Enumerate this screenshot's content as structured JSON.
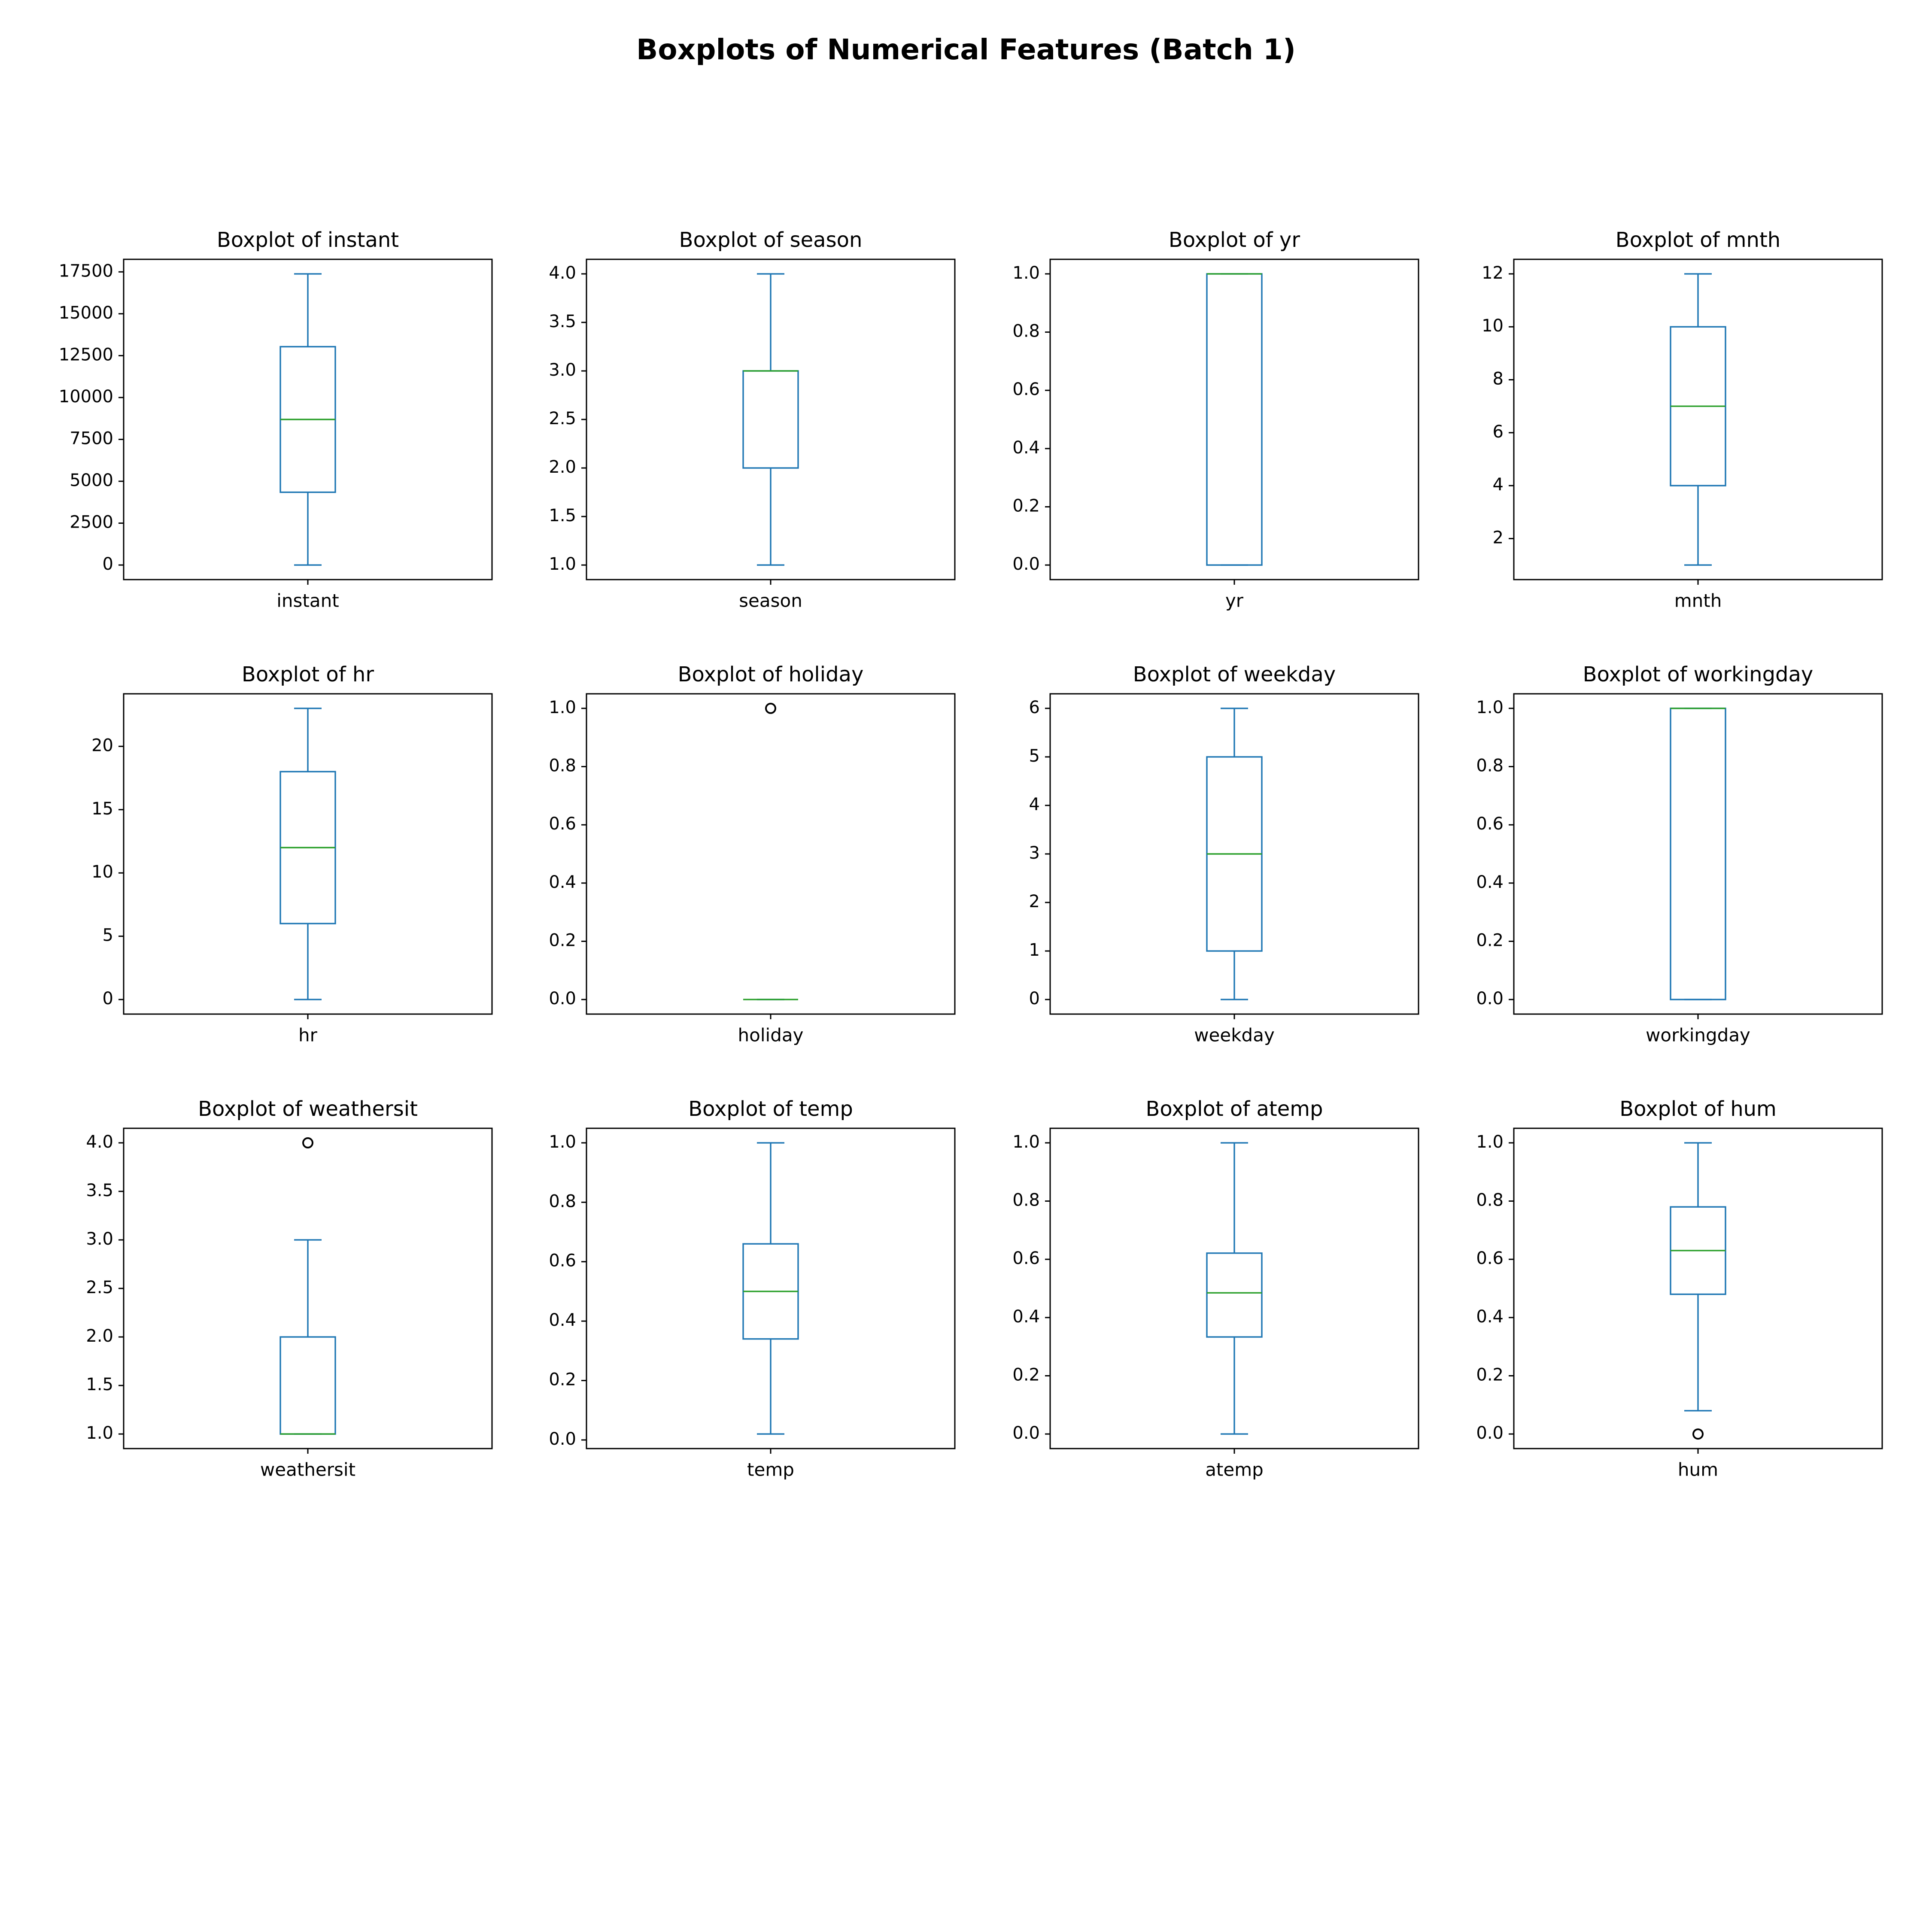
{
  "suptitle": "Boxplots of Numerical Features (Batch 1)",
  "colors": {
    "box": "#1f77b4",
    "median": "#2ca02c",
    "frame": "#000000",
    "flier": "#000000",
    "text": "#000000",
    "background": "#ffffff"
  },
  "chart_data": [
    {
      "type": "box",
      "title": "Boxplot of instant",
      "xlabel": "instant",
      "ylim": [
        -870,
        18250
      ],
      "yticks": [
        0,
        2500,
        5000,
        7500,
        10000,
        12500,
        15000,
        17500
      ],
      "ytick_labels": [
        "0",
        "2500",
        "5000",
        "7500",
        "10000",
        "12500",
        "15000",
        "17500"
      ],
      "whisker_low": 1,
      "q1": 4345,
      "median": 8690,
      "q3": 13034,
      "whisker_high": 17379,
      "fliers": []
    },
    {
      "type": "box",
      "title": "Boxplot of season",
      "xlabel": "season",
      "ylim": [
        0.85,
        4.15
      ],
      "yticks": [
        1.0,
        1.5,
        2.0,
        2.5,
        3.0,
        3.5,
        4.0
      ],
      "ytick_labels": [
        "1.0",
        "1.5",
        "2.0",
        "2.5",
        "3.0",
        "3.5",
        "4.0"
      ],
      "whisker_low": 1,
      "q1": 2,
      "median": 3,
      "q3": 3,
      "whisker_high": 4,
      "fliers": []
    },
    {
      "type": "box",
      "title": "Boxplot of yr",
      "xlabel": "yr",
      "ylim": [
        -0.05,
        1.05
      ],
      "yticks": [
        0.0,
        0.2,
        0.4,
        0.6,
        0.8,
        1.0
      ],
      "ytick_labels": [
        "0.0",
        "0.2",
        "0.4",
        "0.6",
        "0.8",
        "1.0"
      ],
      "whisker_low": 0,
      "q1": 0,
      "median": 1,
      "q3": 1,
      "whisker_high": 1,
      "fliers": []
    },
    {
      "type": "box",
      "title": "Boxplot of mnth",
      "xlabel": "mnth",
      "ylim": [
        0.45,
        12.55
      ],
      "yticks": [
        2,
        4,
        6,
        8,
        10,
        12
      ],
      "ytick_labels": [
        "2",
        "4",
        "6",
        "8",
        "10",
        "12"
      ],
      "whisker_low": 1,
      "q1": 4,
      "median": 7,
      "q3": 10,
      "whisker_high": 12,
      "fliers": []
    },
    {
      "type": "box",
      "title": "Boxplot of hr",
      "xlabel": "hr",
      "ylim": [
        -1.15,
        24.15
      ],
      "yticks": [
        0,
        5,
        10,
        15,
        20
      ],
      "ytick_labels": [
        "0",
        "5",
        "10",
        "15",
        "20"
      ],
      "whisker_low": 0,
      "q1": 6,
      "median": 12,
      "q3": 18,
      "whisker_high": 23,
      "fliers": []
    },
    {
      "type": "box",
      "title": "Boxplot of holiday",
      "xlabel": "holiday",
      "ylim": [
        -0.05,
        1.05
      ],
      "yticks": [
        0.0,
        0.2,
        0.4,
        0.6,
        0.8,
        1.0
      ],
      "ytick_labels": [
        "0.0",
        "0.2",
        "0.4",
        "0.6",
        "0.8",
        "1.0"
      ],
      "whisker_low": 0,
      "q1": 0,
      "median": 0,
      "q3": 0,
      "whisker_high": 0,
      "fliers": [
        1
      ]
    },
    {
      "type": "box",
      "title": "Boxplot of weekday",
      "xlabel": "weekday",
      "ylim": [
        -0.3,
        6.3
      ],
      "yticks": [
        0,
        1,
        2,
        3,
        4,
        5,
        6
      ],
      "ytick_labels": [
        "0",
        "1",
        "2",
        "3",
        "4",
        "5",
        "6"
      ],
      "whisker_low": 0,
      "q1": 1,
      "median": 3,
      "q3": 5,
      "whisker_high": 6,
      "fliers": []
    },
    {
      "type": "box",
      "title": "Boxplot of workingday",
      "xlabel": "workingday",
      "ylim": [
        -0.05,
        1.05
      ],
      "yticks": [
        0.0,
        0.2,
        0.4,
        0.6,
        0.8,
        1.0
      ],
      "ytick_labels": [
        "0.0",
        "0.2",
        "0.4",
        "0.6",
        "0.8",
        "1.0"
      ],
      "whisker_low": 0,
      "q1": 0,
      "median": 1,
      "q3": 1,
      "whisker_high": 1,
      "fliers": []
    },
    {
      "type": "box",
      "title": "Boxplot of weathersit",
      "xlabel": "weathersit",
      "ylim": [
        0.85,
        4.15
      ],
      "yticks": [
        1.0,
        1.5,
        2.0,
        2.5,
        3.0,
        3.5,
        4.0
      ],
      "ytick_labels": [
        "1.0",
        "1.5",
        "2.0",
        "2.5",
        "3.0",
        "3.5",
        "4.0"
      ],
      "whisker_low": 1,
      "q1": 1,
      "median": 1,
      "q3": 2,
      "whisker_high": 3,
      "fliers": [
        4
      ]
    },
    {
      "type": "box",
      "title": "Boxplot of temp",
      "xlabel": "temp",
      "ylim": [
        -0.029,
        1.049
      ],
      "yticks": [
        0.0,
        0.2,
        0.4,
        0.6,
        0.8,
        1.0
      ],
      "ytick_labels": [
        "0.0",
        "0.2",
        "0.4",
        "0.6",
        "0.8",
        "1.0"
      ],
      "whisker_low": 0.02,
      "q1": 0.34,
      "median": 0.5,
      "q3": 0.66,
      "whisker_high": 1.0,
      "fliers": []
    },
    {
      "type": "box",
      "title": "Boxplot of atemp",
      "xlabel": "atemp",
      "ylim": [
        -0.05,
        1.05
      ],
      "yticks": [
        0.0,
        0.2,
        0.4,
        0.6,
        0.8,
        1.0
      ],
      "ytick_labels": [
        "0.0",
        "0.2",
        "0.4",
        "0.6",
        "0.8",
        "1.0"
      ],
      "whisker_low": 0,
      "q1": 0.3333,
      "median": 0.4848,
      "q3": 0.6212,
      "whisker_high": 1.0,
      "fliers": []
    },
    {
      "type": "box",
      "title": "Boxplot of hum",
      "xlabel": "hum",
      "ylim": [
        -0.05,
        1.05
      ],
      "yticks": [
        0.0,
        0.2,
        0.4,
        0.6,
        0.8,
        1.0
      ],
      "ytick_labels": [
        "0.0",
        "0.2",
        "0.4",
        "0.6",
        "0.8",
        "1.0"
      ],
      "whisker_low": 0.08,
      "q1": 0.48,
      "median": 0.63,
      "q3": 0.78,
      "whisker_high": 1.0,
      "fliers": [
        0
      ]
    }
  ]
}
